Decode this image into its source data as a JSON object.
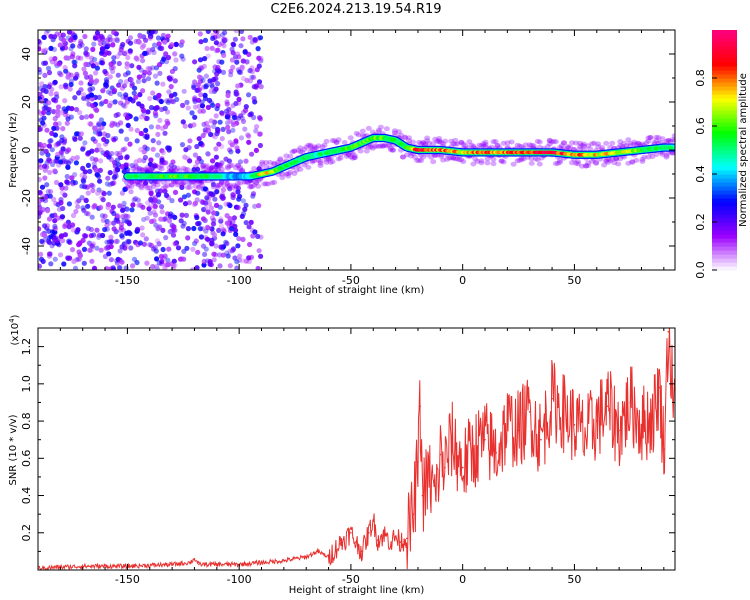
{
  "title": "C2E6.2024.213.19.54.R19",
  "chart_data": [
    {
      "type": "heatmap",
      "xlabel": "Height of straight line (km)",
      "ylabel": "Frequency (Hz)",
      "xlim": [
        -190,
        95
      ],
      "ylim": [
        -50,
        50
      ],
      "xticks": [
        -150,
        -100,
        -50,
        0,
        50
      ],
      "yticks": [
        -40,
        -20,
        0,
        20,
        40
      ],
      "colorbar": {
        "label": "Normalized spectral amplitude",
        "range": [
          0,
          1
        ],
        "ticks": [
          "0.0",
          "0.2",
          "0.4",
          "0.6",
          "0.8"
        ],
        "colors": [
          "#ffffff",
          "#9b00ff",
          "#0000ff",
          "#00ffff",
          "#00ff00",
          "#ffff00",
          "#ff0000",
          "#ff0080"
        ]
      },
      "ridge": {
        "x": [
          -150,
          -130,
          -115,
          -100,
          -95,
          -90,
          -85,
          -80,
          -75,
          -70,
          -65,
          -60,
          -55,
          -50,
          -45,
          -40,
          -35,
          -30,
          -25,
          -20,
          -10,
          0,
          10,
          20,
          30,
          40,
          50,
          60,
          70,
          80,
          90,
          95
        ],
        "y": [
          -11,
          -11,
          -11,
          -11,
          -11,
          -10,
          -9,
          -7,
          -5,
          -3,
          -2,
          -1,
          0,
          1,
          3,
          5,
          5,
          4,
          1,
          0,
          0,
          -1,
          -1,
          -1,
          -1,
          -1,
          -2,
          -2,
          -1,
          0,
          1,
          1
        ],
        "amplitude": [
          0.5,
          0.6,
          0.55,
          0.35,
          0.45,
          0.75,
          0.7,
          0.55,
          0.5,
          0.55,
          0.5,
          0.5,
          0.55,
          0.6,
          0.6,
          0.65,
          0.6,
          0.55,
          0.55,
          0.9,
          0.85,
          0.75,
          0.8,
          0.85,
          0.9,
          0.9,
          0.8,
          0.75,
          0.7,
          0.6,
          0.5,
          0.5
        ]
      }
    },
    {
      "type": "line",
      "xlabel": "Height of straight line (km)",
      "ylabel": "SNR (10 * v/v)",
      "scale_label": "(x10",
      "scale_exp": "4",
      "xlim": [
        -190,
        95
      ],
      "ylim": [
        0,
        1.3
      ],
      "xticks": [
        -150,
        -100,
        -50,
        0,
        50
      ],
      "yticks": [
        0.2,
        0.4,
        0.6,
        0.8,
        1.0,
        1.2
      ],
      "series": [
        {
          "color": "#e8312f",
          "x": [
            -190,
            -170,
            -150,
            -130,
            -122,
            -120,
            -118,
            -110,
            -100,
            -90,
            -80,
            -70,
            -65,
            -60,
            -55,
            -50,
            -48,
            -45,
            -42,
            -40,
            -38,
            -35,
            -32,
            -30,
            -28,
            -25,
            -22,
            -20,
            -19,
            -18,
            -15,
            -12,
            -10,
            -8,
            -5,
            0,
            5,
            10,
            15,
            20,
            25,
            30,
            35,
            40,
            45,
            50,
            55,
            60,
            65,
            70,
            75,
            80,
            85,
            88,
            90,
            92,
            95
          ],
          "y": [
            0.01,
            0.02,
            0.02,
            0.03,
            0.04,
            0.06,
            0.03,
            0.03,
            0.03,
            0.04,
            0.05,
            0.07,
            0.1,
            0.07,
            0.14,
            0.2,
            0.15,
            0.1,
            0.2,
            0.27,
            0.16,
            0.19,
            0.15,
            0.18,
            0.15,
            0.17,
            0.3,
            0.58,
            0.88,
            0.4,
            0.5,
            0.38,
            0.62,
            0.55,
            0.7,
            0.55,
            0.65,
            0.7,
            0.63,
            0.78,
            0.75,
            0.85,
            0.7,
            0.92,
            0.85,
            0.78,
            0.72,
            0.8,
            0.88,
            0.75,
            0.9,
            0.78,
            0.82,
            0.98,
            0.65,
            1.28,
            0.8
          ]
        }
      ]
    }
  ]
}
